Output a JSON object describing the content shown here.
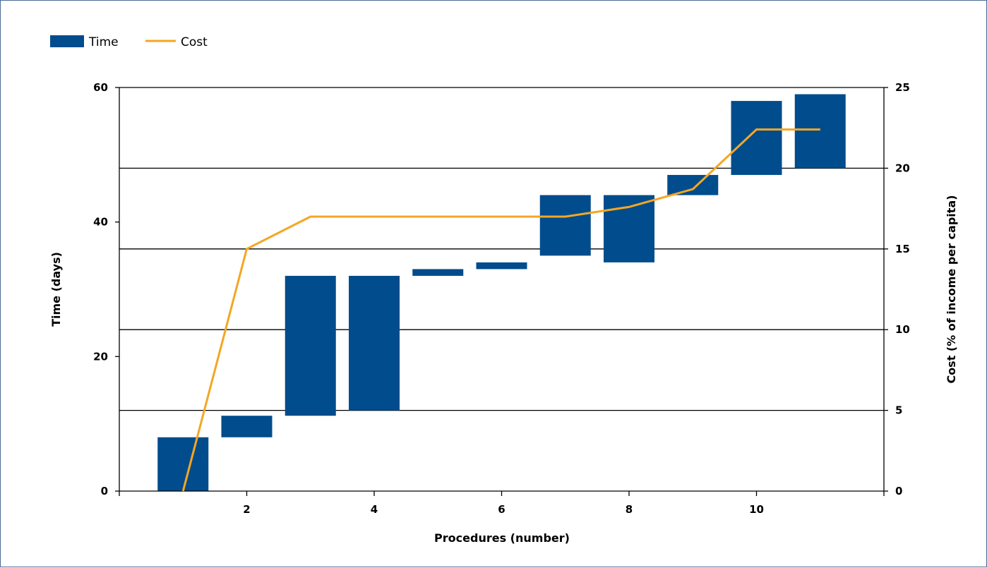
{
  "chart_data": {
    "type": "bar",
    "subtype": "floating-bar-with-line",
    "legend": [
      {
        "label": "Time",
        "kind": "bar",
        "color": "#004c8c"
      },
      {
        "label": "Cost",
        "kind": "line",
        "color": "#f5a623"
      }
    ],
    "legend_position": "top-left",
    "xlabel": "Procedures (number)",
    "ylabel_left": "Time (days)",
    "ylabel_right": "Cost (% of income per capita)",
    "x_ticks": [
      2,
      4,
      6,
      8,
      10
    ],
    "y_left_ticks": [
      0,
      20,
      40,
      60
    ],
    "y_right_ticks": [
      0,
      5,
      10,
      15,
      20,
      25
    ],
    "xlim": [
      0,
      12
    ],
    "y_left_lim": [
      0,
      60
    ],
    "y_right_lim": [
      0,
      25
    ],
    "gridlines": "horizontal, at right-axis ticks",
    "time_bars": [
      {
        "procedure": 1,
        "start": 0,
        "end": 8
      },
      {
        "procedure": 2,
        "start": 8,
        "end": 11.2
      },
      {
        "procedure": 3,
        "start": 11.2,
        "end": 32
      },
      {
        "procedure": 4,
        "start": 12,
        "end": 32
      },
      {
        "procedure": 5,
        "start": 32,
        "end": 33
      },
      {
        "procedure": 6,
        "start": 33,
        "end": 34
      },
      {
        "procedure": 7,
        "start": 35,
        "end": 44
      },
      {
        "procedure": 8,
        "start": 34,
        "end": 44
      },
      {
        "procedure": 9,
        "start": 44,
        "end": 47
      },
      {
        "procedure": 10,
        "start": 47,
        "end": 58
      },
      {
        "procedure": 11,
        "start": 48,
        "end": 59
      }
    ],
    "cost_line": [
      {
        "procedure": 1,
        "value": 0
      },
      {
        "procedure": 2,
        "value": 15
      },
      {
        "procedure": 3,
        "value": 17
      },
      {
        "procedure": 4,
        "value": 17
      },
      {
        "procedure": 5,
        "value": 17
      },
      {
        "procedure": 6,
        "value": 17
      },
      {
        "procedure": 7,
        "value": 17
      },
      {
        "procedure": 8,
        "value": 17.6
      },
      {
        "procedure": 9,
        "value": 18.7
      },
      {
        "procedure": 10,
        "value": 22.4
      },
      {
        "procedure": 11,
        "value": 22.4
      }
    ]
  }
}
